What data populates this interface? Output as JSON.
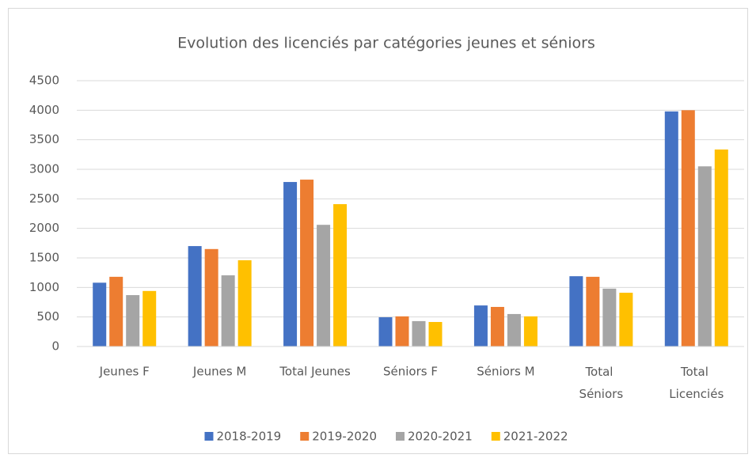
{
  "chart_data": {
    "type": "bar",
    "title": "Evolution des licenciés par catégories jeunes et séniors",
    "categories": [
      "Jeunes F",
      "Jeunes M",
      "Total Jeunes",
      "Séniors F",
      "Séniors M",
      "Total Séniors",
      "Total Licenciés"
    ],
    "series": [
      {
        "name": "2018-2019",
        "color": "#4472c4",
        "values": [
          1080,
          1700,
          2785,
          495,
          695,
          1190,
          3980
        ]
      },
      {
        "name": "2019-2020",
        "color": "#ed7d31",
        "values": [
          1180,
          1650,
          2825,
          510,
          670,
          1180,
          4000
        ]
      },
      {
        "name": "2020-2021",
        "color": "#a5a5a5",
        "values": [
          870,
          1205,
          2060,
          430,
          550,
          980,
          3050
        ]
      },
      {
        "name": "2021-2022",
        "color": "#ffc000",
        "values": [
          940,
          1460,
          2410,
          415,
          510,
          910,
          3335
        ]
      }
    ],
    "ylim": [
      0,
      4500
    ],
    "yticks": [
      0,
      500,
      1000,
      1500,
      2000,
      2500,
      3000,
      3500,
      4000,
      4500
    ],
    "grid": true,
    "legend": "bottom"
  }
}
